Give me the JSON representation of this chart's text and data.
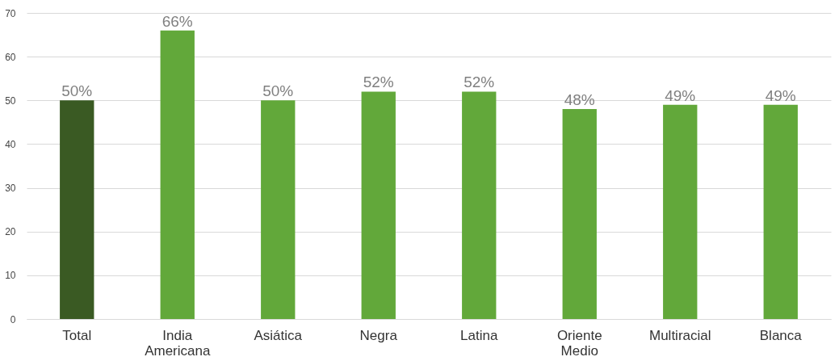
{
  "chart_data": {
    "type": "bar",
    "categories": [
      "Total",
      "India Americana",
      "Asiática",
      "Negra",
      "Latina",
      "Oriente Medio",
      "Multiracial",
      "Blanca"
    ],
    "values": [
      50,
      66,
      50,
      52,
      52,
      48,
      49,
      49
    ],
    "colors": [
      "#3a5a23",
      "#62a83a",
      "#62a83a",
      "#62a83a",
      "#62a83a",
      "#62a83a",
      "#62a83a",
      "#62a83a"
    ],
    "value_labels": [
      "50%",
      "66%",
      "50%",
      "52%",
      "52%",
      "48%",
      "49%",
      "49%"
    ],
    "ylim": [
      0,
      70
    ],
    "yticks": [
      0,
      10,
      20,
      30,
      40,
      50,
      60,
      70
    ],
    "grid": "y"
  }
}
